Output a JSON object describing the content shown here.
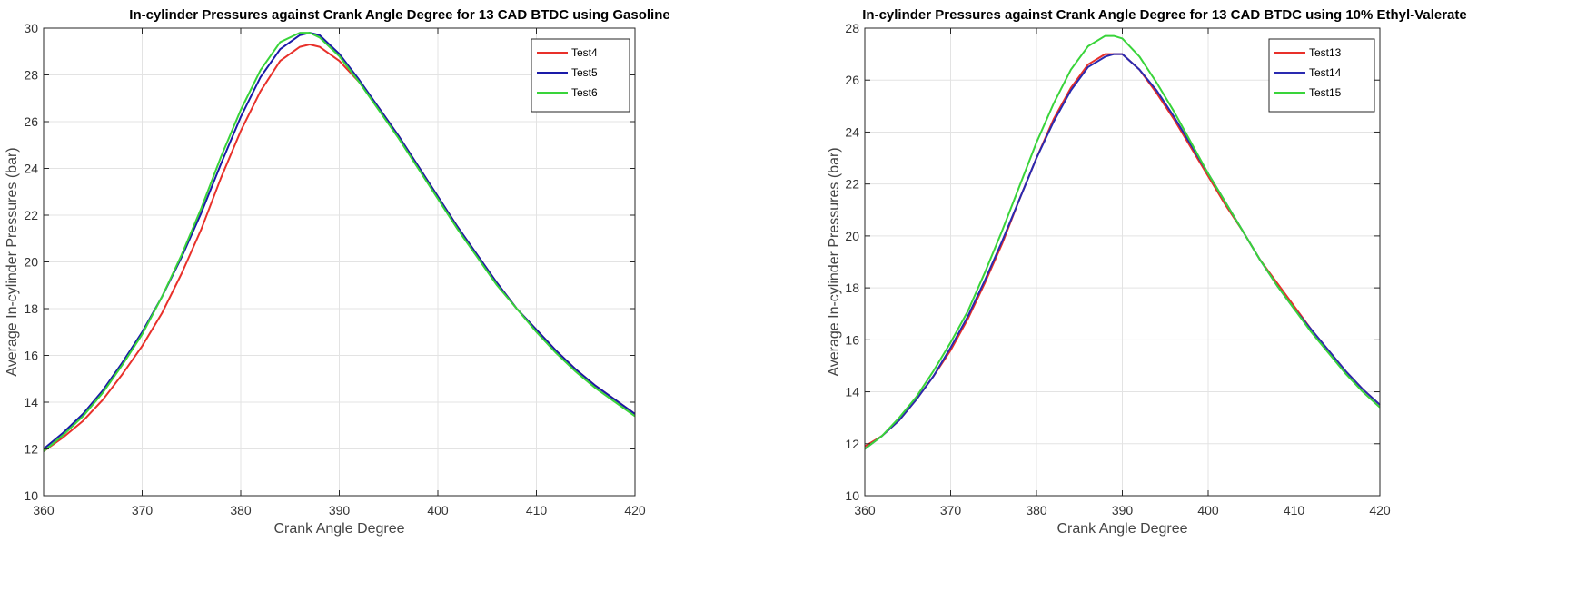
{
  "chart_data": [
    {
      "type": "line",
      "title": "In-cylinder Pressures against Crank Angle Degree for 13 CAD BTDC using Gasoline",
      "xlabel": "Crank Angle Degree",
      "ylabel": "Average In-cylinder Pressures (bar)",
      "xlim": [
        360,
        420
      ],
      "ylim": [
        10,
        30
      ],
      "xticks": [
        360,
        370,
        380,
        390,
        400,
        410,
        420
      ],
      "yticks": [
        10,
        12,
        14,
        16,
        18,
        20,
        22,
        24,
        26,
        28,
        30
      ],
      "grid": true,
      "legend_position": "top-right",
      "series": [
        {
          "name": "Test4",
          "color": "#e8302a",
          "x": [
            360,
            362,
            364,
            366,
            368,
            370,
            372,
            374,
            376,
            378,
            380,
            382,
            384,
            386,
            387,
            388,
            390,
            392,
            394,
            396,
            398,
            400,
            402,
            404,
            406,
            408,
            410,
            412,
            414,
            416,
            418,
            420
          ],
          "y": [
            11.9,
            12.5,
            13.2,
            14.1,
            15.2,
            16.4,
            17.8,
            19.5,
            21.4,
            23.6,
            25.6,
            27.3,
            28.6,
            29.2,
            29.3,
            29.2,
            28.6,
            27.7,
            26.6,
            25.4,
            24.1,
            22.8,
            21.5,
            20.3,
            19.1,
            18.0,
            17.1,
            16.2,
            15.4,
            14.7,
            14.1,
            13.5
          ]
        },
        {
          "name": "Test5",
          "color": "#1a1aa8",
          "x": [
            360,
            362,
            364,
            366,
            368,
            370,
            372,
            374,
            376,
            378,
            380,
            382,
            384,
            386,
            387,
            388,
            390,
            392,
            394,
            396,
            398,
            400,
            402,
            404,
            406,
            408,
            410,
            412,
            414,
            416,
            418,
            420
          ],
          "y": [
            12.0,
            12.7,
            13.5,
            14.5,
            15.7,
            17.0,
            18.5,
            20.2,
            22.1,
            24.2,
            26.2,
            27.9,
            29.1,
            29.7,
            29.8,
            29.7,
            28.9,
            27.8,
            26.6,
            25.4,
            24.1,
            22.8,
            21.5,
            20.3,
            19.1,
            18.0,
            17.1,
            16.2,
            15.4,
            14.7,
            14.1,
            13.5
          ]
        },
        {
          "name": "Test6",
          "color": "#39d43a",
          "x": [
            360,
            362,
            364,
            366,
            368,
            370,
            372,
            374,
            376,
            378,
            380,
            382,
            384,
            386,
            387,
            388,
            390,
            392,
            394,
            396,
            398,
            400,
            402,
            404,
            406,
            408,
            410,
            412,
            414,
            416,
            418,
            420
          ],
          "y": [
            11.9,
            12.6,
            13.4,
            14.4,
            15.6,
            16.9,
            18.5,
            20.3,
            22.3,
            24.5,
            26.5,
            28.2,
            29.4,
            29.8,
            29.8,
            29.6,
            28.8,
            27.7,
            26.5,
            25.3,
            24.0,
            22.7,
            21.4,
            20.2,
            19.0,
            18.0,
            17.0,
            16.1,
            15.3,
            14.6,
            14.0,
            13.4
          ]
        }
      ]
    },
    {
      "type": "line",
      "title": "In-cylinder Pressures against Crank Angle Degree for 13 CAD BTDC using 10% Ethyl-Valerate",
      "xlabel": "Crank Angle Degree",
      "ylabel": "Average In-cylinder Pressures (bar)",
      "xlim": [
        360,
        420
      ],
      "ylim": [
        10,
        28
      ],
      "xticks": [
        360,
        370,
        380,
        390,
        400,
        410,
        420
      ],
      "yticks": [
        10,
        12,
        14,
        16,
        18,
        20,
        22,
        24,
        26,
        28
      ],
      "grid": true,
      "legend_position": "top-right",
      "series": [
        {
          "name": "Test13",
          "color": "#e8302a",
          "x": [
            360,
            362,
            364,
            366,
            368,
            370,
            372,
            374,
            376,
            378,
            380,
            382,
            384,
            386,
            388,
            389,
            390,
            392,
            394,
            396,
            398,
            400,
            402,
            404,
            406,
            408,
            410,
            412,
            414,
            416,
            418,
            420
          ],
          "y": [
            11.9,
            12.3,
            12.9,
            13.7,
            14.6,
            15.6,
            16.8,
            18.2,
            19.7,
            21.4,
            23.0,
            24.5,
            25.7,
            26.6,
            27.0,
            27.0,
            27.0,
            26.4,
            25.5,
            24.5,
            23.4,
            22.3,
            21.2,
            20.2,
            19.1,
            18.2,
            17.3,
            16.4,
            15.6,
            14.8,
            14.1,
            13.5
          ]
        },
        {
          "name": "Test14",
          "color": "#2a2ab0",
          "x": [
            360,
            362,
            364,
            366,
            368,
            370,
            372,
            374,
            376,
            378,
            380,
            382,
            384,
            386,
            388,
            389,
            390,
            392,
            394,
            396,
            398,
            400,
            402,
            404,
            406,
            408,
            410,
            412,
            414,
            416,
            418,
            420
          ],
          "y": [
            11.8,
            12.3,
            12.9,
            13.7,
            14.6,
            15.7,
            16.9,
            18.3,
            19.8,
            21.4,
            23.0,
            24.4,
            25.6,
            26.5,
            26.9,
            27.0,
            27.0,
            26.4,
            25.6,
            24.6,
            23.5,
            22.4,
            21.3,
            20.2,
            19.1,
            18.1,
            17.2,
            16.4,
            15.6,
            14.8,
            14.1,
            13.5
          ]
        },
        {
          "name": "Test15",
          "color": "#39d43a",
          "x": [
            360,
            362,
            364,
            366,
            368,
            370,
            372,
            374,
            376,
            378,
            380,
            382,
            384,
            386,
            388,
            389,
            390,
            392,
            394,
            396,
            398,
            400,
            402,
            404,
            406,
            408,
            410,
            412,
            414,
            416,
            418,
            420
          ],
          "y": [
            11.8,
            12.3,
            13.0,
            13.8,
            14.8,
            15.9,
            17.1,
            18.6,
            20.2,
            21.9,
            23.6,
            25.1,
            26.4,
            27.3,
            27.7,
            27.7,
            27.6,
            26.9,
            25.9,
            24.8,
            23.6,
            22.4,
            21.3,
            20.2,
            19.1,
            18.1,
            17.2,
            16.3,
            15.5,
            14.7,
            14.0,
            13.4
          ]
        }
      ]
    }
  ]
}
